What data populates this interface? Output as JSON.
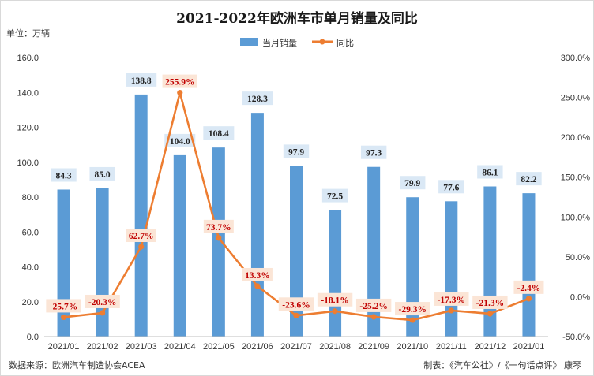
{
  "chart_data": {
    "type": "bar",
    "title": "2021-2022年欧洲车市单月销量及同比",
    "unit_label": "单位：万辆",
    "categories": [
      "2021/01",
      "2021/02",
      "2021/03",
      "2021/04",
      "2021/05",
      "2021/06",
      "2021/07",
      "2021/08",
      "2021/09",
      "2021/10",
      "2021/11",
      "2021/12",
      "2021/01"
    ],
    "series": [
      {
        "name": "当月销量",
        "type": "bar",
        "axis": "left",
        "color": "#5b9bd5",
        "values": [
          84.3,
          85.0,
          138.8,
          104.0,
          108.4,
          128.3,
          97.9,
          72.5,
          97.3,
          79.9,
          77.6,
          86.1,
          82.2
        ],
        "labels": [
          "84.3",
          "85.0",
          "138.8",
          "104.0",
          "108.4",
          "128.3",
          "97.9",
          "72.5",
          "97.3",
          "79.9",
          "77.6",
          "86.1",
          "82.2"
        ]
      },
      {
        "name": "同比",
        "type": "line",
        "axis": "right",
        "color": "#ed7d31",
        "values": [
          -25.7,
          -20.3,
          62.7,
          255.9,
          73.7,
          13.3,
          -23.6,
          -18.1,
          -25.2,
          -29.3,
          -17.3,
          -21.3,
          -2.4
        ],
        "labels": [
          "-25.7%",
          "-20.3%",
          "62.7%",
          "255.9%",
          "73.7%",
          "13.3%",
          "-23.6%",
          "-18.1%",
          "-25.2%",
          "-29.3%",
          "-17.3%",
          "-21.3%",
          "-2.4%"
        ]
      }
    ],
    "y_left": {
      "range": [
        0,
        160
      ],
      "ticks": [
        0,
        20,
        40,
        60,
        80,
        100,
        120,
        140,
        160
      ],
      "tick_labels": [
        "0.0",
        "20.0",
        "40.0",
        "60.0",
        "80.0",
        "100.0",
        "120.0",
        "140.0",
        "160.0"
      ]
    },
    "y_right": {
      "range": [
        -50,
        300
      ],
      "ticks": [
        -50,
        0,
        50,
        100,
        150,
        200,
        250,
        300
      ],
      "tick_labels": [
        "-50.0%",
        "0.0%",
        "50.0%",
        "100.0%",
        "150.0%",
        "200.0%",
        "250.0%",
        "300.0%"
      ]
    },
    "grid": false,
    "legend_position": "top-center",
    "bar_label_bg": "#dae8f5",
    "line_label_bg": "#fbe5d6",
    "line_label_color": "#c00000"
  },
  "footer": {
    "source": "数据来源：欧洲汽车制造协会ACEA",
    "credit": "制表：《汽车公社》/《一句话点评》 康琴"
  }
}
